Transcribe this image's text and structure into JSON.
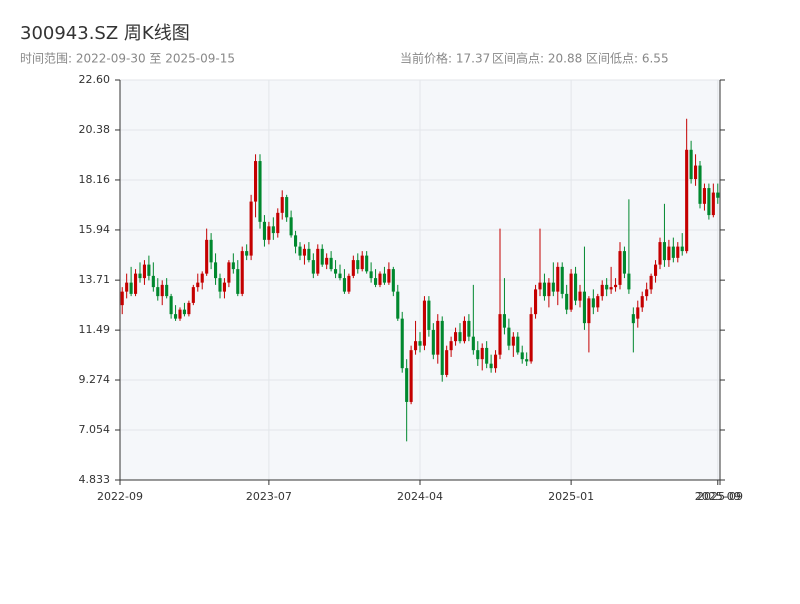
{
  "chart_data": {
    "type": "candlestick",
    "title": "300943.SZ 周K线图",
    "subtitle_left": "时间范围: 2022-09-30 至 2025-09-15",
    "subtitle_right": [
      "当前价格: 17.37",
      "区间高点: 20.88",
      "区间低点: 6.55"
    ],
    "up_color": "#c40000",
    "down_color": "#00882e",
    "grid": true,
    "ylim": [
      4.833,
      22.6
    ],
    "yticks": [
      4.833,
      7.054,
      9.274,
      11.49,
      13.71,
      15.94,
      18.16,
      20.38,
      {
        "value": 22.6,
        "label": "22.60"
      }
    ],
    "xlim": [
      -0.5,
      134.5
    ],
    "xticks": [
      {
        "value": -0.5,
        "label": "2022-09"
      },
      {
        "value": 33,
        "label": "2023-07"
      },
      {
        "value": 67,
        "label": "2024-04"
      },
      {
        "value": 101,
        "label": "2025-01"
      },
      {
        "value": 134,
        "label": "2025-09"
      },
      {
        "value": 134.5,
        "label": "2025-09"
      }
    ],
    "ohlc": [
      [
        12.6,
        13.4,
        12.2,
        13.2
      ],
      [
        13.2,
        14.0,
        12.9,
        13.6
      ],
      [
        13.6,
        14.3,
        13.0,
        13.1
      ],
      [
        13.1,
        14.2,
        13.0,
        14.0
      ],
      [
        14.0,
        14.5,
        13.6,
        13.8
      ],
      [
        13.8,
        14.6,
        13.5,
        14.4
      ],
      [
        14.4,
        14.8,
        13.7,
        13.9
      ],
      [
        13.9,
        14.5,
        13.2,
        13.4
      ],
      [
        13.4,
        13.8,
        12.8,
        13.0
      ],
      [
        13.0,
        13.7,
        12.6,
        13.5
      ],
      [
        13.5,
        13.8,
        12.9,
        13.0
      ],
      [
        13.0,
        13.1,
        12.0,
        12.2
      ],
      [
        12.2,
        12.6,
        11.9,
        12.0
      ],
      [
        12.0,
        12.5,
        11.9,
        12.4
      ],
      [
        12.4,
        12.7,
        12.1,
        12.2
      ],
      [
        12.2,
        12.8,
        12.1,
        12.7
      ],
      [
        12.7,
        13.5,
        12.6,
        13.4
      ],
      [
        13.4,
        14.0,
        13.2,
        13.6
      ],
      [
        13.6,
        14.1,
        13.3,
        14.0
      ],
      [
        14.0,
        16.0,
        13.9,
        15.5
      ],
      [
        15.5,
        15.8,
        14.2,
        14.5
      ],
      [
        14.5,
        14.9,
        13.5,
        13.8
      ],
      [
        13.8,
        14.0,
        12.9,
        13.2
      ],
      [
        13.2,
        13.8,
        12.9,
        13.6
      ],
      [
        13.6,
        14.6,
        13.4,
        14.5
      ],
      [
        14.5,
        14.9,
        14.0,
        14.2
      ],
      [
        14.2,
        14.6,
        13.0,
        13.1
      ],
      [
        13.1,
        15.2,
        13.0,
        15.0
      ],
      [
        15.0,
        15.3,
        14.6,
        14.8
      ],
      [
        14.8,
        17.5,
        14.6,
        17.2
      ],
      [
        17.2,
        19.3,
        16.5,
        19.0
      ],
      [
        19.0,
        19.3,
        16.0,
        16.3
      ],
      [
        16.3,
        16.6,
        15.2,
        15.5
      ],
      [
        15.5,
        16.3,
        15.3,
        16.1
      ],
      [
        16.1,
        16.5,
        15.5,
        15.8
      ],
      [
        15.8,
        16.9,
        15.6,
        16.7
      ],
      [
        16.7,
        17.7,
        16.4,
        17.4
      ],
      [
        17.4,
        17.5,
        16.3,
        16.5
      ],
      [
        16.5,
        16.8,
        15.6,
        15.7
      ],
      [
        15.7,
        15.9,
        14.9,
        15.2
      ],
      [
        15.2,
        15.4,
        14.6,
        14.8
      ],
      [
        14.8,
        15.3,
        14.4,
        15.1
      ],
      [
        15.1,
        15.4,
        14.5,
        14.6
      ],
      [
        14.6,
        14.9,
        13.8,
        14.0
      ],
      [
        14.0,
        15.3,
        13.9,
        15.1
      ],
      [
        15.1,
        15.3,
        14.3,
        14.4
      ],
      [
        14.4,
        14.9,
        14.2,
        14.7
      ],
      [
        14.7,
        15.0,
        14.1,
        14.2
      ],
      [
        14.2,
        14.6,
        13.8,
        14.0
      ],
      [
        14.0,
        14.4,
        13.7,
        13.8
      ],
      [
        13.8,
        14.2,
        13.1,
        13.2
      ],
      [
        13.2,
        14.0,
        13.1,
        13.9
      ],
      [
        13.9,
        14.8,
        13.8,
        14.6
      ],
      [
        14.6,
        14.9,
        14.0,
        14.2
      ],
      [
        14.2,
        15.0,
        14.1,
        14.8
      ],
      [
        14.8,
        15.0,
        14.0,
        14.1
      ],
      [
        14.1,
        14.5,
        13.6,
        13.8
      ],
      [
        13.8,
        14.2,
        13.4,
        13.5
      ],
      [
        13.5,
        14.1,
        13.4,
        14.0
      ],
      [
        14.0,
        14.3,
        13.5,
        13.6
      ],
      [
        13.6,
        14.5,
        13.5,
        14.2
      ],
      [
        14.2,
        14.3,
        13.0,
        13.2
      ],
      [
        13.2,
        13.5,
        11.9,
        12.0
      ],
      [
        12.0,
        12.3,
        9.6,
        9.8
      ],
      [
        9.8,
        10.2,
        6.55,
        8.3
      ],
      [
        8.3,
        10.8,
        8.2,
        10.6
      ],
      [
        10.6,
        11.9,
        10.4,
        11.0
      ],
      [
        11.0,
        11.4,
        10.5,
        10.8
      ],
      [
        10.8,
        13.0,
        10.6,
        12.8
      ],
      [
        12.8,
        13.0,
        11.2,
        11.5
      ],
      [
        11.5,
        11.8,
        10.2,
        10.4
      ],
      [
        10.4,
        12.2,
        10.0,
        11.9
      ],
      [
        11.9,
        12.1,
        9.2,
        9.5
      ],
      [
        9.5,
        10.8,
        9.4,
        10.6
      ],
      [
        10.6,
        11.2,
        10.3,
        11.0
      ],
      [
        11.0,
        11.6,
        10.8,
        11.4
      ],
      [
        11.4,
        11.8,
        10.9,
        11.0
      ],
      [
        11.0,
        12.1,
        10.9,
        11.9
      ],
      [
        11.9,
        12.2,
        11.0,
        11.2
      ],
      [
        11.2,
        13.5,
        10.4,
        10.6
      ],
      [
        10.6,
        11.0,
        9.9,
        10.2
      ],
      [
        10.2,
        10.9,
        9.7,
        10.7
      ],
      [
        10.7,
        11.0,
        9.8,
        10.0
      ],
      [
        10.0,
        10.4,
        9.6,
        9.8
      ],
      [
        9.8,
        10.6,
        9.6,
        10.4
      ],
      [
        10.4,
        16.0,
        10.2,
        12.2
      ],
      [
        12.2,
        13.8,
        11.3,
        11.6
      ],
      [
        11.6,
        12.0,
        10.6,
        10.8
      ],
      [
        10.8,
        11.4,
        10.3,
        11.2
      ],
      [
        11.2,
        11.4,
        10.4,
        10.5
      ],
      [
        10.5,
        10.8,
        10.0,
        10.2
      ],
      [
        10.2,
        10.5,
        9.9,
        10.1
      ],
      [
        10.1,
        12.5,
        10.0,
        12.2
      ],
      [
        12.2,
        13.5,
        12.0,
        13.3
      ],
      [
        13.3,
        16.0,
        13.0,
        13.6
      ],
      [
        13.6,
        14.0,
        12.8,
        13.0
      ],
      [
        13.0,
        13.8,
        12.5,
        13.6
      ],
      [
        13.6,
        14.5,
        13.0,
        13.2
      ],
      [
        13.2,
        14.5,
        12.6,
        14.3
      ],
      [
        14.3,
        14.5,
        12.9,
        13.1
      ],
      [
        13.1,
        13.5,
        12.2,
        12.4
      ],
      [
        12.4,
        14.2,
        12.3,
        14.0
      ],
      [
        14.0,
        14.3,
        12.6,
        12.8
      ],
      [
        12.8,
        13.5,
        12.5,
        13.2
      ],
      [
        13.2,
        15.2,
        11.5,
        11.8
      ],
      [
        11.8,
        13.0,
        10.5,
        12.9
      ],
      [
        12.9,
        13.3,
        12.2,
        12.5
      ],
      [
        12.5,
        13.1,
        12.3,
        13.0
      ],
      [
        13.0,
        13.7,
        12.8,
        13.5
      ],
      [
        13.5,
        13.8,
        13.0,
        13.3
      ],
      [
        13.3,
        14.3,
        13.1,
        13.4
      ],
      [
        13.4,
        13.8,
        13.2,
        13.5
      ],
      [
        13.5,
        15.4,
        13.3,
        15.0
      ],
      [
        15.0,
        15.2,
        13.8,
        14.0
      ],
      [
        14.0,
        17.3,
        13.1,
        13.3
      ],
      [
        12.2,
        12.5,
        10.5,
        11.8
      ],
      [
        12.0,
        12.8,
        11.6,
        12.5
      ],
      [
        12.5,
        13.2,
        12.3,
        13.0
      ],
      [
        13.0,
        13.6,
        12.8,
        13.3
      ],
      [
        13.3,
        14.0,
        13.1,
        13.9
      ],
      [
        13.9,
        14.6,
        13.6,
        14.4
      ],
      [
        14.4,
        15.6,
        14.2,
        15.4
      ],
      [
        15.4,
        17.1,
        14.3,
        14.6
      ],
      [
        14.6,
        15.5,
        14.3,
        15.2
      ],
      [
        15.2,
        15.6,
        14.5,
        14.7
      ],
      [
        14.7,
        15.4,
        14.5,
        15.2
      ],
      [
        15.2,
        15.8,
        14.8,
        15.0
      ],
      [
        15.0,
        20.88,
        14.9,
        19.5
      ],
      [
        19.5,
        19.9,
        18.0,
        18.2
      ],
      [
        18.2,
        19.3,
        17.9,
        18.8
      ],
      [
        18.8,
        19.0,
        16.9,
        17.1
      ],
      [
        17.1,
        18.0,
        16.8,
        17.8
      ],
      [
        17.8,
        18.0,
        16.4,
        16.6
      ],
      [
        16.6,
        18.0,
        16.5,
        17.6
      ],
      [
        17.6,
        18.0,
        17.1,
        17.37
      ]
    ]
  }
}
